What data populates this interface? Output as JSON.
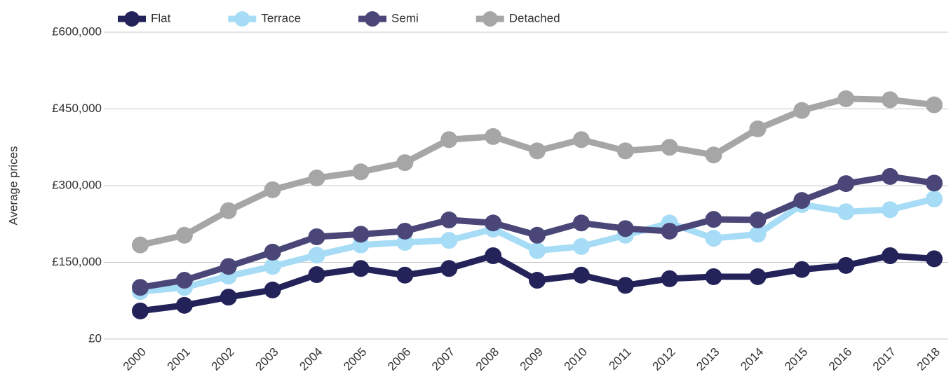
{
  "chart_data": {
    "type": "line",
    "y_label": "Average prices",
    "categories": [
      "2000",
      "2001",
      "2002",
      "2003",
      "2004",
      "2005",
      "2006",
      "2007",
      "2008",
      "2009",
      "2010",
      "2011",
      "2012",
      "2013",
      "2014",
      "2015",
      "2016",
      "2017",
      "2018"
    ],
    "series": [
      {
        "name": "Flat",
        "color": "#23235a",
        "values": [
          55000,
          66000,
          82000,
          96000,
          126000,
          138000,
          125000,
          138000,
          163000,
          115000,
          125000,
          105000,
          118000,
          122000,
          122000,
          136000,
          144000,
          163000,
          157000
        ]
      },
      {
        "name": "Terrace",
        "color": "#a6dcf5",
        "values": [
          93000,
          101000,
          123000,
          142000,
          164000,
          184000,
          189000,
          193000,
          215000,
          173000,
          181000,
          203000,
          227000,
          197000,
          205000,
          263000,
          249000,
          253000,
          274000
        ]
      },
      {
        "name": "Semi",
        "color": "#4a4778",
        "values": [
          101000,
          115000,
          142000,
          170000,
          200000,
          205000,
          211000,
          233000,
          227000,
          203000,
          227000,
          216000,
          211000,
          234000,
          233000,
          271000,
          304000,
          318000,
          305000
        ]
      },
      {
        "name": "Detached",
        "color": "#a6a6a6",
        "values": [
          184000,
          203000,
          251000,
          292000,
          315000,
          327000,
          345000,
          390000,
          396000,
          368000,
          390000,
          368000,
          375000,
          360000,
          411000,
          447000,
          470000,
          468000,
          458000
        ]
      }
    ],
    "ylim": [
      0,
      600000
    ],
    "yticks": [
      {
        "value": 0,
        "label": "£0"
      },
      {
        "value": 150000,
        "label": "£150,000"
      },
      {
        "value": 300000,
        "label": "£300,000"
      },
      {
        "value": 450000,
        "label": "£450,000"
      },
      {
        "value": 600000,
        "label": "£600,000"
      }
    ],
    "grid": true,
    "legend": "top-left"
  }
}
